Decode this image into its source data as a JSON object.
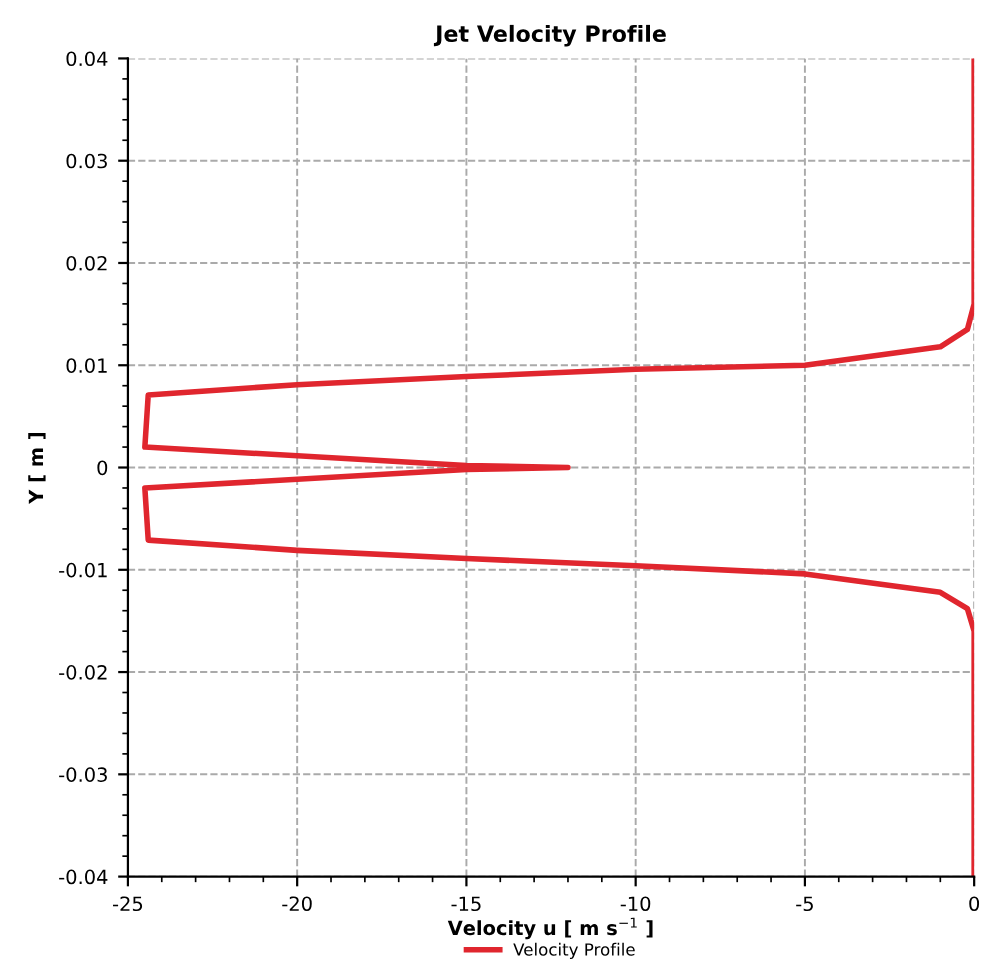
{
  "chart_data": {
    "type": "line",
    "title": "Jet Velocity Profile",
    "xlabel": "Velocity u [ m s$^{−1}$ ]",
    "ylabel": "Y [ m ]",
    "series": [
      {
        "name": "Velocity Profile",
        "color": "#e0262e",
        "x": [
          0,
          0,
          -0.2,
          -1,
          -5,
          -10,
          -15,
          -20,
          -24.4,
          -24.5,
          -15,
          -12,
          -15,
          -24.5,
          -24.4,
          -20,
          -15,
          -10,
          -5,
          -1,
          -0.2,
          0,
          0
        ],
        "values": [
          0.04,
          0.016,
          0.0135,
          0.0118,
          0.01,
          0.0096,
          0.0089,
          0.0081,
          0.0071,
          0.002,
          0.0002,
          0,
          -0.0002,
          -0.002,
          -0.0071,
          -0.0081,
          -0.0089,
          -0.0096,
          -0.0104,
          -0.0122,
          -0.0138,
          -0.016,
          -0.04
        ]
      }
    ],
    "xlim": [
      -25,
      0
    ],
    "xticks": [
      -25,
      -20,
      -15,
      -10,
      -5,
      0
    ],
    "ylim": [
      -0.04,
      0.04
    ],
    "yticks": [
      {
        "value": -0.04,
        "label": "-0.04"
      },
      {
        "value": -0.03,
        "label": "-0.03"
      },
      {
        "value": -0.02,
        "label": "-0.02"
      },
      {
        "value": -0.01,
        "label": "-0.01"
      },
      0,
      0.01,
      0.02,
      0.03,
      0.04
    ],
    "grid": true,
    "legend": "bottom",
    "marker": "none",
    "line_style": "solid"
  }
}
